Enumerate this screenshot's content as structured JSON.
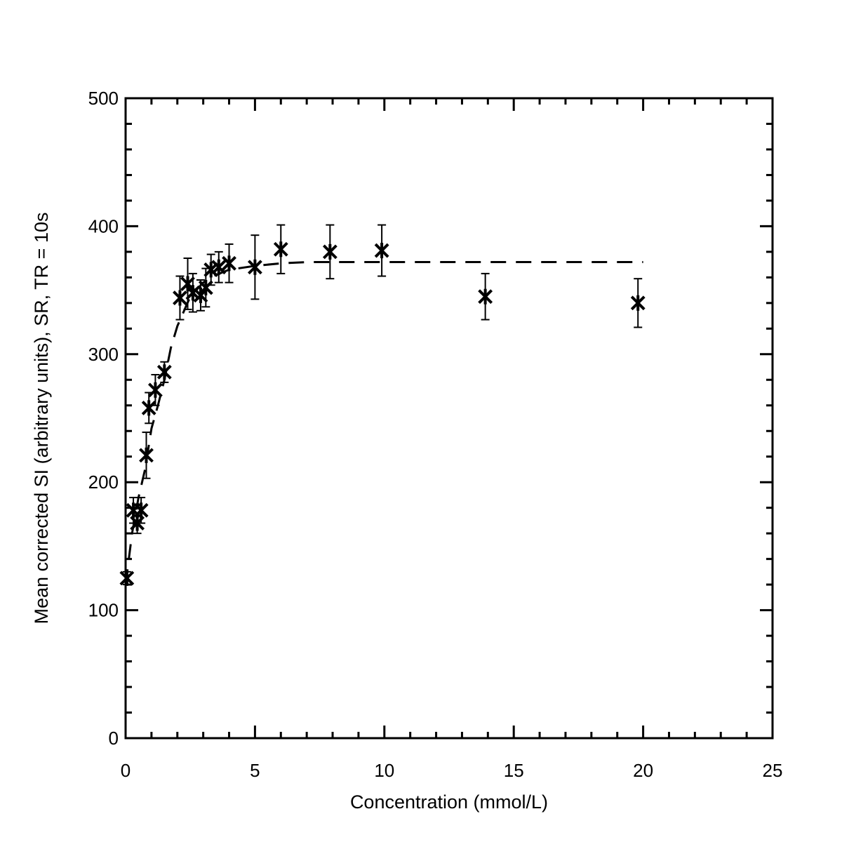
{
  "chart_data": {
    "type": "scatter",
    "title": "",
    "xlabel": "Concentration (mmol/L)",
    "ylabel": "Mean corrected SI (arbitrary units),  SR, TR = 10s",
    "xlim": [
      0,
      25
    ],
    "ylim": [
      0,
      500
    ],
    "xticks": [
      0,
      5,
      10,
      15,
      20,
      25
    ],
    "yticks": [
      0,
      100,
      200,
      300,
      400,
      500
    ],
    "xtick_labels": [
      "0",
      "5",
      "10",
      "15",
      "20",
      "25"
    ],
    "ytick_labels": [
      "0",
      "100",
      "200",
      "300",
      "400",
      "500"
    ],
    "grid": false,
    "legend": "none",
    "colors": {
      "foreground": "#000000",
      "background": "#ffffff"
    },
    "series": [
      {
        "marker": "asterisk",
        "points": [
          {
            "x": 0.05,
            "y": 125,
            "err": 5
          },
          {
            "x": 0.3,
            "y": 178,
            "err": 10
          },
          {
            "x": 0.45,
            "y": 168,
            "err": 8
          },
          {
            "x": 0.6,
            "y": 178,
            "err": 10
          },
          {
            "x": 0.8,
            "y": 221,
            "err": 18
          },
          {
            "x": 0.9,
            "y": 258,
            "err": 12
          },
          {
            "x": 1.15,
            "y": 272,
            "err": 12
          },
          {
            "x": 1.5,
            "y": 286,
            "err": 8
          },
          {
            "x": 2.1,
            "y": 344,
            "err": 17
          },
          {
            "x": 2.4,
            "y": 355,
            "err": 20
          },
          {
            "x": 2.6,
            "y": 348,
            "err": 15
          },
          {
            "x": 2.9,
            "y": 346,
            "err": 12
          },
          {
            "x": 3.1,
            "y": 352,
            "err": 15
          },
          {
            "x": 3.3,
            "y": 366,
            "err": 12
          },
          {
            "x": 3.6,
            "y": 368,
            "err": 12
          },
          {
            "x": 4.0,
            "y": 371,
            "err": 15
          },
          {
            "x": 5.0,
            "y": 368,
            "err": 25
          },
          {
            "x": 6.0,
            "y": 382,
            "err": 19
          },
          {
            "x": 7.9,
            "y": 380,
            "err": 21
          },
          {
            "x": 9.9,
            "y": 381,
            "err": 20
          },
          {
            "x": 13.9,
            "y": 345,
            "err": 18
          },
          {
            "x": 19.8,
            "y": 340,
            "err": 19
          }
        ]
      },
      {
        "style": "dashed-line",
        "x": [
          0,
          0.25,
          0.5,
          0.75,
          1.0,
          1.25,
          1.5,
          1.75,
          2.0,
          2.5,
          3.0,
          3.5,
          4.0,
          5.0,
          6.0,
          7.0,
          8.0,
          10.0,
          13.0,
          16.0,
          20.0
        ],
        "y": [
          120,
          160,
          188,
          210,
          242,
          260,
          280,
          305,
          322,
          345,
          356,
          362,
          366,
          369,
          371,
          372,
          372,
          372,
          372,
          372,
          372
        ]
      }
    ]
  }
}
